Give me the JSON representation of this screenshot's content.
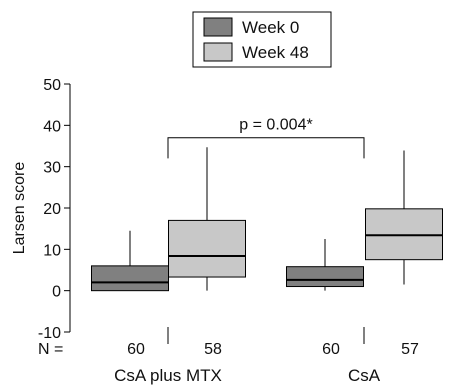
{
  "chart_data": {
    "type": "boxplot",
    "title": "",
    "ylabel": "Larsen score",
    "ylim": [
      -10,
      50
    ],
    "yticks": [
      -10,
      0,
      10,
      20,
      30,
      40,
      50
    ],
    "grid": false,
    "legend_position": "top-center",
    "series": [
      {
        "name": "Week 0",
        "color": "#808080"
      },
      {
        "name": "Week 48",
        "color": "#c8c8c8"
      }
    ],
    "groups": [
      {
        "label": "CsA plus MTX",
        "boxes": [
          {
            "series": "Week 0",
            "n": "60",
            "whisker_low": 0,
            "q1": 0,
            "median": 2,
            "q3": 6,
            "whisker_high": 14.5
          },
          {
            "series": "Week 48",
            "n": "58",
            "whisker_low": 0,
            "q1": 3.3,
            "median": 8.4,
            "q3": 17,
            "whisker_high": 34.7
          }
        ]
      },
      {
        "label": "CsA",
        "boxes": [
          {
            "series": "Week 0",
            "n": "60",
            "whisker_low": 0,
            "q1": 1,
            "median": 2.6,
            "q3": 5.8,
            "whisker_high": 12.5
          },
          {
            "series": "Week 48",
            "n": "57",
            "whisker_low": 1.5,
            "q1": 7.5,
            "median": 13.4,
            "q3": 19.8,
            "whisker_high": 33.9
          }
        ]
      }
    ],
    "n_label": "N =",
    "annotation": {
      "text": "p = 0.004*",
      "spans": [
        "CsA plus MTX",
        "CsA"
      ]
    }
  }
}
